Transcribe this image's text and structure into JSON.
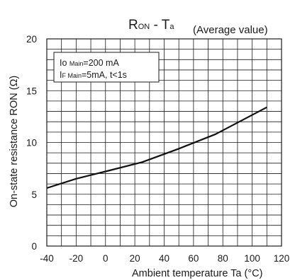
{
  "chart_data": {
    "type": "line",
    "title": {
      "main": "R",
      "main_sub": "ON",
      "dash": " - ",
      "var": "T",
      "var_sub": "a",
      "note": "(Average value)"
    },
    "xlabel": "Ambient temperature Ta (°C)",
    "ylabel": "On-state resistance RON (Ω)",
    "xlim": [
      -40,
      120
    ],
    "ylim": [
      0,
      20
    ],
    "x_ticks": [
      -40,
      -20,
      0,
      20,
      40,
      60,
      80,
      100,
      120
    ],
    "y_ticks": [
      0,
      5,
      10,
      15,
      20
    ],
    "grid": true,
    "grid_x_step": 10,
    "grid_y_step": 1,
    "legend": {
      "placement": "top-left",
      "line1": {
        "pre": "Io ",
        "sub": "Main",
        "post": "=200 mA"
      },
      "line2": {
        "pre": "I",
        "sub": "F Main",
        "post": "=5mA, t<1s"
      }
    },
    "series": [
      {
        "x": [
          -40,
          -20,
          0,
          25,
          50,
          75,
          110
        ],
        "y": [
          5.6,
          6.5,
          7.2,
          8.1,
          9.4,
          10.8,
          13.4
        ]
      }
    ],
    "colors": {
      "line": "#111111",
      "grid": "#1a1a1a",
      "frame": "#1a1a1a"
    }
  }
}
